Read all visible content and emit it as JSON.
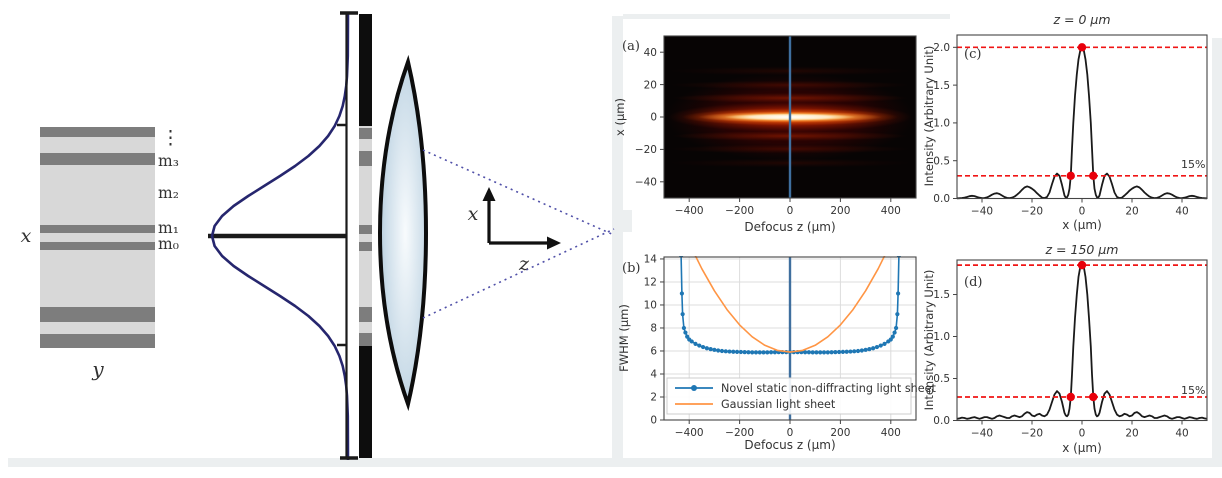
{
  "diagram": {
    "plate_x_label": "x",
    "plate_y_label": "y",
    "mode_dots": "⋮",
    "mode_m3": "m₃",
    "mode_m2": "m₂",
    "mode_m1": "m₁",
    "mode_m0": "m₀",
    "axis_x": "x",
    "axis_z": "z"
  },
  "colors": {
    "novel_series": "#1f77b4",
    "gaussian_series": "#ff9544",
    "profile_series": "#1a1a1a",
    "red_marker": "#e8000b",
    "dashed_line": "#f01515",
    "focus_line": "#3f6f9e"
  },
  "chart_data": [
    {
      "id": "a",
      "type": "heatmap",
      "panel_label": "(a)",
      "xlabel": "Defocus z (μm)",
      "ylabel": "x (μm)",
      "xlim": [
        -500,
        500
      ],
      "ylim": [
        -50,
        50
      ],
      "xticks": [
        -400,
        -200,
        0,
        200,
        400
      ],
      "yticks": [
        40,
        20,
        0,
        -20,
        -40
      ],
      "vline_x": 0,
      "description": "Light-sheet intensity map: bright white-hot horizontal sheet centered at x = 0 extending from z ≈ -430 to 430 μm, with faint red side-lobe bands near x ≈ ±12 and ±20 μm, black background, blue vertical line at z = 0"
    },
    {
      "id": "b",
      "type": "line",
      "panel_label": "(b)",
      "xlabel": "Defocus z (μm)",
      "ylabel": "FWHM (μm)",
      "xlim": [
        -500,
        500
      ],
      "ylim": [
        0,
        14.17
      ],
      "xticks": [
        -400,
        -200,
        0,
        200,
        400
      ],
      "yticks": [
        0,
        2,
        4,
        6,
        8,
        10,
        12,
        14
      ],
      "grid": true,
      "vline_x": 0,
      "legend": true,
      "series": [
        {
          "name": "Novel static non-diffracting light sheet",
          "color": "#1f77b4",
          "marker": true,
          "mirror": true,
          "width": 1.6,
          "points": [
            [
              0,
              5.9
            ],
            [
              15,
              5.9
            ],
            [
              30,
              5.9
            ],
            [
              45,
              5.9
            ],
            [
              60,
              5.89
            ],
            [
              75,
              5.89
            ],
            [
              90,
              5.88
            ],
            [
              105,
              5.88
            ],
            [
              120,
              5.88
            ],
            [
              135,
              5.88
            ],
            [
              150,
              5.88
            ],
            [
              165,
              5.89
            ],
            [
              180,
              5.9
            ],
            [
              195,
              5.91
            ],
            [
              210,
              5.92
            ],
            [
              225,
              5.93
            ],
            [
              240,
              5.95
            ],
            [
              255,
              5.97
            ],
            [
              270,
              6.0
            ],
            [
              285,
              6.04
            ],
            [
              300,
              6.1
            ],
            [
              315,
              6.16
            ],
            [
              330,
              6.24
            ],
            [
              345,
              6.34
            ],
            [
              360,
              6.47
            ],
            [
              375,
              6.62
            ],
            [
              390,
              6.83
            ],
            [
              400,
              7.0
            ],
            [
              408,
              7.25
            ],
            [
              415,
              7.6
            ],
            [
              421,
              8.0
            ],
            [
              426,
              9.2
            ],
            [
              429,
              11.0
            ],
            [
              432,
              14.3
            ]
          ]
        },
        {
          "name": "Gaussian light sheet",
          "color": "#ff9544",
          "marker": false,
          "mirror": true,
          "width": 1.6,
          "points": [
            [
              0,
              5.9
            ],
            [
              50,
              6.05
            ],
            [
              100,
              6.49
            ],
            [
              150,
              7.23
            ],
            [
              200,
              8.27
            ],
            [
              250,
              9.6
            ],
            [
              300,
              11.23
            ],
            [
              350,
              13.15
            ],
            [
              400,
              15.37
            ],
            [
              450,
              17.89
            ],
            [
              500,
              20.72
            ]
          ]
        }
      ]
    },
    {
      "id": "c",
      "type": "line",
      "panel_label": "(c)",
      "title": "z = 0 μm",
      "xlabel": "x (μm)",
      "ylabel": "Intensity (Arbitrary Unit)",
      "xlim": [
        -50,
        50
      ],
      "ylim": [
        0,
        2.163
      ],
      "xticks": [
        -40,
        -20,
        0,
        20,
        40
      ],
      "yticks": [
        "0.0",
        "0.5",
        "1.0",
        "1.5",
        "2.0"
      ],
      "hlines": [
        2.0,
        0.3
      ],
      "red_points": [
        [
          -4.5,
          0.3
        ],
        [
          0,
          2.0
        ],
        [
          4.5,
          0.3
        ]
      ],
      "annotation": "15%",
      "series": [
        {
          "name": "intensity profile at z = 0 μm",
          "color": "#1a1a1a",
          "marker": false,
          "mirror": true,
          "width": 1.8,
          "points": [
            [
              0,
              2.0
            ],
            [
              0.7,
              1.96
            ],
            [
              1.4,
              1.84
            ],
            [
              2.1,
              1.64
            ],
            [
              2.8,
              1.36
            ],
            [
              3.5,
              1.0
            ],
            [
              4,
              0.66
            ],
            [
              4.5,
              0.3
            ],
            [
              5,
              0.13
            ],
            [
              5.5,
              0.05
            ],
            [
              6,
              0.015
            ],
            [
              6.5,
              0.012
            ],
            [
              7,
              0.04
            ],
            [
              8,
              0.18
            ],
            [
              9,
              0.3
            ],
            [
              10,
              0.33
            ],
            [
              11,
              0.29
            ],
            [
              12,
              0.19
            ],
            [
              13,
              0.08
            ],
            [
              14,
              0.02
            ],
            [
              15,
              0.005
            ],
            [
              16,
              0.012
            ],
            [
              17,
              0.04
            ],
            [
              18,
              0.07
            ],
            [
              19,
              0.105
            ],
            [
              20,
              0.13
            ],
            [
              21,
              0.15
            ],
            [
              22,
              0.16
            ],
            [
              23,
              0.145
            ],
            [
              24,
              0.115
            ],
            [
              25,
              0.08
            ],
            [
              26,
              0.05
            ],
            [
              27,
              0.025
            ],
            [
              28,
              0.01
            ],
            [
              29,
              0.005
            ],
            [
              30,
              0.008
            ],
            [
              31,
              0.02
            ],
            [
              32,
              0.04
            ],
            [
              33,
              0.06
            ],
            [
              34,
              0.07
            ],
            [
              35,
              0.065
            ],
            [
              36,
              0.05
            ],
            [
              37,
              0.03
            ],
            [
              38,
              0.015
            ],
            [
              39,
              0.006
            ],
            [
              40,
              0.005
            ],
            [
              41,
              0.01
            ],
            [
              42,
              0.02
            ],
            [
              43,
              0.032
            ],
            [
              44,
              0.036
            ],
            [
              45,
              0.03
            ],
            [
              46,
              0.02
            ],
            [
              47,
              0.012
            ],
            [
              48,
              0.006
            ],
            [
              49,
              0.004
            ],
            [
              50,
              0.003
            ]
          ]
        }
      ]
    },
    {
      "id": "d",
      "type": "line",
      "panel_label": "(d)",
      "title": "z = 150 μm",
      "xlabel": "x (μm)",
      "ylabel": "Intensity (Arbitrary Unit)",
      "xlim": [
        -50,
        50
      ],
      "ylim": [
        0,
        1.911
      ],
      "xticks": [
        -40,
        -20,
        0,
        20,
        40
      ],
      "yticks": [
        "0.0",
        "0.5",
        "1.0",
        "1.5"
      ],
      "hlines": [
        1.85,
        0.28
      ],
      "red_points": [
        [
          -4.5,
          0.28
        ],
        [
          0,
          1.85
        ],
        [
          4.5,
          0.28
        ]
      ],
      "annotation": "15%",
      "series": [
        {
          "name": "intensity profile at z = 150 μm",
          "color": "#1a1a1a",
          "marker": false,
          "mirror": true,
          "width": 1.8,
          "points": [
            [
              0,
              1.87
            ],
            [
              0.7,
              1.83
            ],
            [
              1.4,
              1.71
            ],
            [
              2.1,
              1.5
            ],
            [
              2.8,
              1.22
            ],
            [
              3.5,
              0.88
            ],
            [
              4,
              0.55
            ],
            [
              4.5,
              0.28
            ],
            [
              5,
              0.14
            ],
            [
              5.5,
              0.07
            ],
            [
              6,
              0.05
            ],
            [
              6.5,
              0.06
            ],
            [
              7,
              0.09
            ],
            [
              8,
              0.22
            ],
            [
              9,
              0.32
            ],
            [
              10,
              0.35
            ],
            [
              11,
              0.31
            ],
            [
              12,
              0.22
            ],
            [
              13,
              0.13
            ],
            [
              14,
              0.07
            ],
            [
              15,
              0.05
            ],
            [
              16,
              0.06
            ],
            [
              17,
              0.08
            ],
            [
              18,
              0.07
            ],
            [
              19,
              0.05
            ],
            [
              20,
              0.06
            ],
            [
              21,
              0.09
            ],
            [
              22,
              0.1
            ],
            [
              23,
              0.08
            ],
            [
              24,
              0.05
            ],
            [
              25,
              0.04
            ],
            [
              26,
              0.05
            ],
            [
              27,
              0.06
            ],
            [
              28,
              0.05
            ],
            [
              29,
              0.03
            ],
            [
              30,
              0.03
            ],
            [
              31,
              0.04
            ],
            [
              32,
              0.05
            ],
            [
              33,
              0.06
            ],
            [
              34,
              0.05
            ],
            [
              35,
              0.03
            ],
            [
              36,
              0.02
            ],
            [
              37,
              0.03
            ],
            [
              38,
              0.04
            ],
            [
              39,
              0.04
            ],
            [
              40,
              0.03
            ],
            [
              41,
              0.02
            ],
            [
              42,
              0.03
            ],
            [
              43,
              0.04
            ],
            [
              44,
              0.035
            ],
            [
              45,
              0.025
            ],
            [
              46,
              0.02
            ],
            [
              47,
              0.03
            ],
            [
              48,
              0.035
            ],
            [
              49,
              0.025
            ],
            [
              50,
              0.02
            ]
          ]
        }
      ]
    }
  ]
}
